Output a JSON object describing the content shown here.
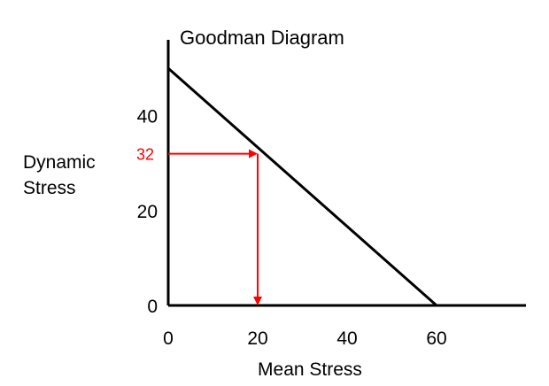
{
  "chart_data": {
    "type": "line",
    "title": "Goodman Diagram",
    "xlabel": "Mean Stress",
    "ylabel": [
      "Dynamic",
      "Stress"
    ],
    "x_ticks": [
      "0",
      "20",
      "40",
      "60"
    ],
    "y_ticks": [
      "0",
      "20",
      "40"
    ],
    "xlim": [
      0,
      80
    ],
    "ylim": [
      0,
      56
    ],
    "grid": false,
    "series": [
      {
        "points": [
          [
            0,
            50
          ],
          [
            60,
            0
          ]
        ]
      }
    ],
    "annotations": [
      {
        "label": "32",
        "x": 20,
        "y": 32,
        "color": "#ff0000"
      }
    ]
  }
}
